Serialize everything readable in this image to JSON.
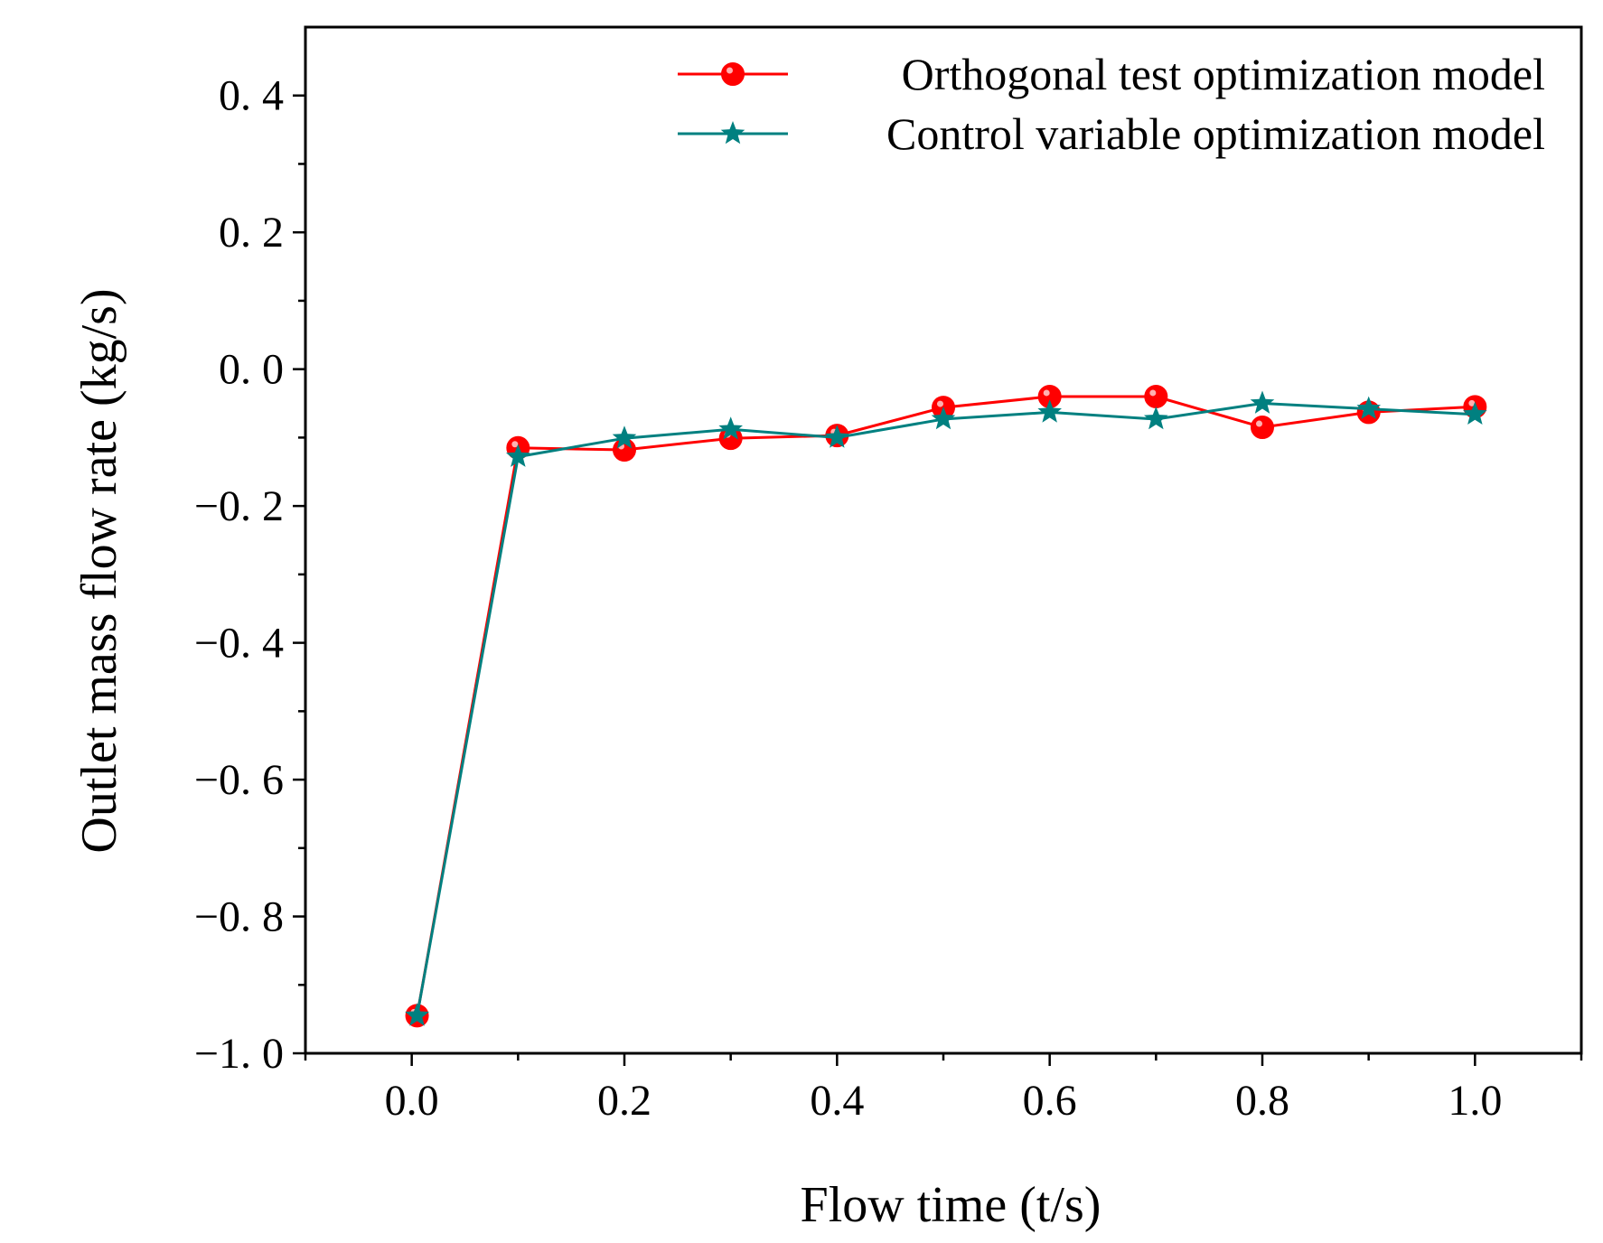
{
  "chart_data": {
    "type": "line",
    "xlabel": "Flow time (t/s)",
    "ylabel": "Outlet  mass flow rate (kg/s)",
    "xlim": [
      -0.1,
      1.1
    ],
    "ylim": [
      -1.0,
      0.5
    ],
    "xticks": [
      0.0,
      0.2,
      0.4,
      0.6,
      0.8,
      1.0
    ],
    "xtick_labels": [
      "0.0",
      "0.2",
      "0.4",
      "0.6",
      "0.8",
      "1.0"
    ],
    "yticks": [
      -1.0,
      -0.8,
      -0.6,
      -0.4,
      -0.2,
      0.0,
      0.2,
      0.4
    ],
    "ytick_labels": [
      "−1. 0",
      "−0. 8",
      "−0. 6",
      "−0. 4",
      "−0. 2",
      "0. 0",
      "0. 2",
      "0. 4"
    ],
    "grid": false,
    "legend_position": "top-right",
    "x": [
      0.005,
      0.1,
      0.2,
      0.3,
      0.4,
      0.5,
      0.6,
      0.7,
      0.8,
      0.9,
      1.0
    ],
    "series": [
      {
        "name": "Orthogonal test optimization model",
        "color": "#ff0000",
        "marker": "circle",
        "values": [
          -0.945,
          -0.115,
          -0.118,
          -0.101,
          -0.097,
          -0.056,
          -0.04,
          -0.04,
          -0.085,
          -0.063,
          -0.055
        ]
      },
      {
        "name": "Control variable optimization model",
        "color": "#008080",
        "marker": "star",
        "values": [
          -0.945,
          -0.128,
          -0.101,
          -0.088,
          -0.1,
          -0.073,
          -0.063,
          -0.073,
          -0.05,
          -0.058,
          -0.066
        ]
      }
    ]
  }
}
